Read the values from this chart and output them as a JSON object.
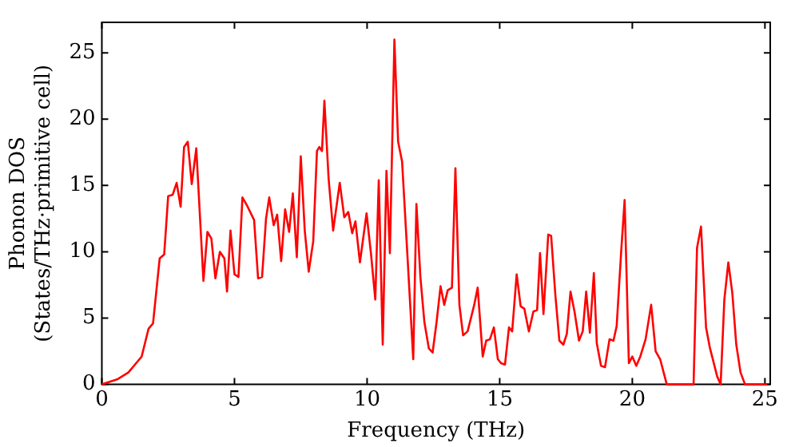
{
  "chart_data": {
    "type": "line",
    "xlabel": "Frequency (THz)",
    "ylabel": "Phonon DOS\n(States/THz·primitive cell)",
    "xlim": [
      0,
      25.2
    ],
    "ylim": [
      0,
      27.3
    ],
    "xticks": [
      0,
      5,
      10,
      15,
      20,
      25
    ],
    "yticks": [
      0,
      5,
      10,
      15,
      20,
      25
    ],
    "grid": false,
    "legend": false,
    "marker": "none",
    "line_style": "solid",
    "series": [
      {
        "color": "#ff0000",
        "x": [
          0,
          0.6,
          1.0,
          1.5,
          1.76,
          1.93,
          2.18,
          2.35,
          2.5,
          2.67,
          2.82,
          2.97,
          3.1,
          3.24,
          3.39,
          3.56,
          3.83,
          3.98,
          4.13,
          4.28,
          4.45,
          4.62,
          4.72,
          4.85,
          5.0,
          5.15,
          5.3,
          5.47,
          5.74,
          5.89,
          6.04,
          6.19,
          6.31,
          6.48,
          6.61,
          6.76,
          6.91,
          7.06,
          7.2,
          7.35,
          7.5,
          7.65,
          7.8,
          7.97,
          8.11,
          8.2,
          8.3,
          8.39,
          8.55,
          8.72,
          8.97,
          9.14,
          9.29,
          9.44,
          9.56,
          9.73,
          9.98,
          10.15,
          10.31,
          10.44,
          10.59,
          10.73,
          10.86,
          11.03,
          11.17,
          11.32,
          11.53,
          11.74,
          11.86,
          12.01,
          12.16,
          12.33,
          12.47,
          12.62,
          12.77,
          12.91,
          13.04,
          13.2,
          13.33,
          13.48,
          13.62,
          13.79,
          14.04,
          14.17,
          14.36,
          14.49,
          14.63,
          14.78,
          14.93,
          15.05,
          15.2,
          15.35,
          15.47,
          15.64,
          15.79,
          15.93,
          16.1,
          16.27,
          16.41,
          16.52,
          16.65,
          16.83,
          16.94,
          17.1,
          17.25,
          17.4,
          17.53,
          17.67,
          17.82,
          17.99,
          18.13,
          18.26,
          18.4,
          18.55,
          18.66,
          18.82,
          18.97,
          19.14,
          19.29,
          19.41,
          19.58,
          19.71,
          19.87,
          20.0,
          20.15,
          20.3,
          20.5,
          20.71,
          20.88,
          21.05,
          21.3,
          22.31,
          22.44,
          22.59,
          22.78,
          22.92,
          23.2,
          23.33,
          23.47,
          23.62,
          23.77,
          23.92,
          24.08,
          24.25,
          25.08
        ],
        "values": [
          0,
          0.4,
          0.9,
          2.1,
          4.2,
          4.6,
          9.5,
          9.8,
          14.2,
          14.3,
          15.2,
          13.4,
          17.9,
          18.3,
          15.1,
          17.8,
          7.8,
          11.5,
          11.0,
          8.0,
          10.0,
          9.5,
          7.0,
          11.6,
          8.3,
          8.1,
          14.1,
          13.5,
          12.4,
          8.0,
          8.1,
          12.5,
          14.1,
          12.0,
          12.8,
          9.3,
          13.2,
          11.5,
          14.4,
          9.6,
          17.2,
          11.6,
          8.5,
          10.8,
          17.6,
          17.9,
          17.6,
          21.4,
          15.5,
          11.6,
          15.2,
          12.6,
          13.0,
          11.4,
          12.3,
          9.2,
          12.9,
          9.8,
          6.4,
          15.4,
          3.0,
          16.1,
          9.9,
          26.0,
          18.3,
          16.8,
          9.4,
          1.9,
          13.6,
          8.1,
          4.7,
          2.7,
          2.4,
          4.7,
          7.4,
          6.0,
          7.1,
          7.3,
          16.3,
          6.0,
          3.7,
          4.0,
          6.0,
          7.3,
          2.1,
          3.3,
          3.4,
          4.3,
          1.9,
          1.6,
          1.5,
          4.3,
          4.0,
          8.3,
          5.9,
          5.7,
          4.0,
          5.5,
          5.6,
          9.9,
          5.3,
          11.3,
          11.2,
          6.7,
          3.3,
          3.0,
          3.8,
          7.0,
          5.5,
          3.3,
          4.0,
          7.0,
          3.9,
          8.4,
          3.1,
          1.4,
          1.3,
          3.4,
          3.3,
          4.4,
          10.0,
          13.9,
          1.6,
          2.1,
          1.4,
          2.1,
          3.4,
          6.0,
          2.5,
          1.9,
          0,
          0,
          10.3,
          11.9,
          4.3,
          2.8,
          0.6,
          0,
          6.4,
          9.2,
          6.9,
          3.0,
          0.9,
          0,
          0
        ]
      }
    ]
  }
}
